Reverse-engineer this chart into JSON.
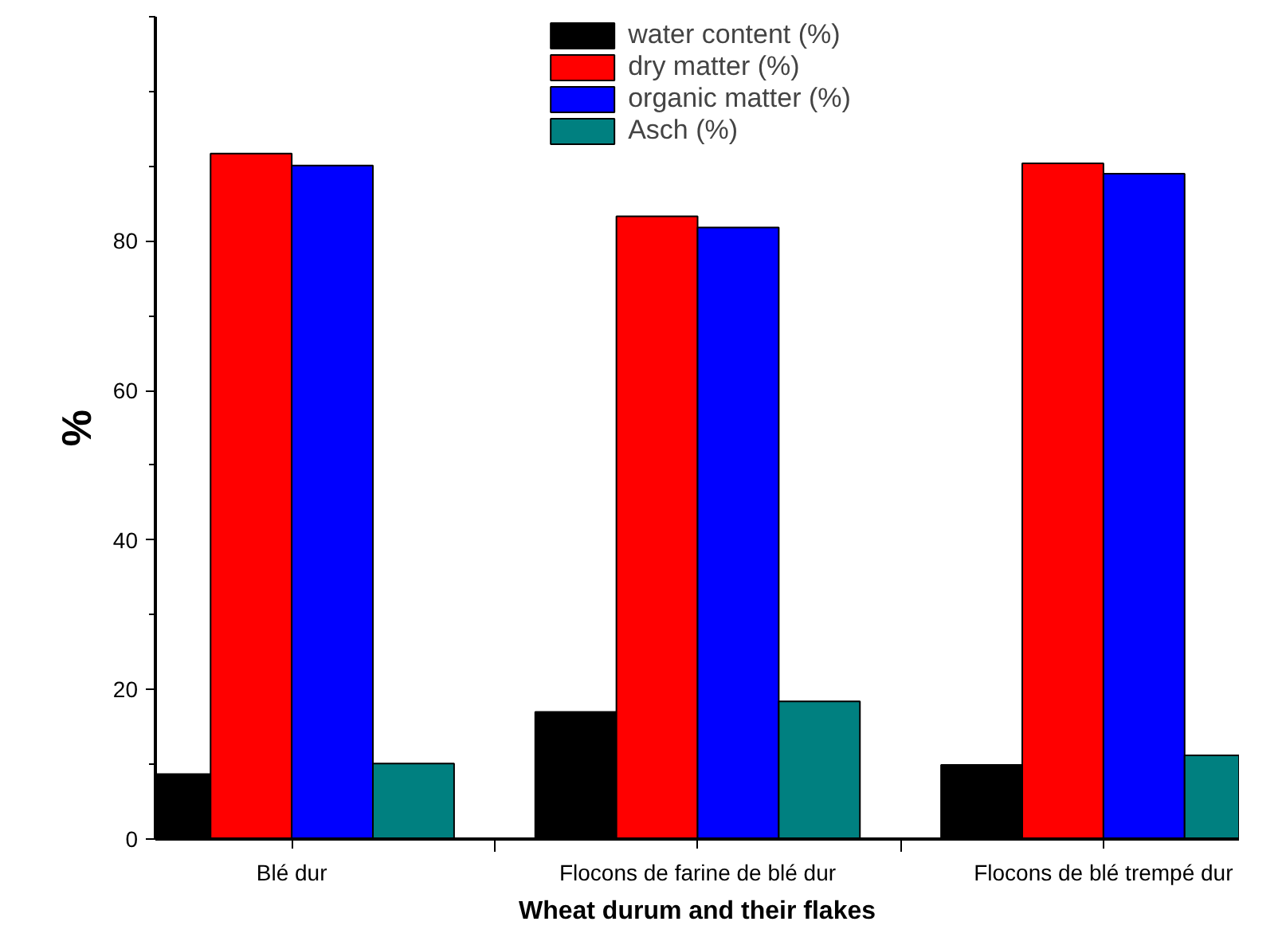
{
  "chart_data": {
    "type": "bar",
    "xlabel": "Wheat durum and their flakes",
    "ylabel": "%",
    "categories": [
      "Blé dur",
      "Flocons de farine de blé dur",
      "Flocons de blé trempé dur"
    ],
    "series": [
      {
        "name": "water content (%)",
        "color": "#000000",
        "values": [
          8.7,
          17.0,
          9.9
        ]
      },
      {
        "name": "dry matter (%)",
        "color": "#ff0000",
        "values": [
          91.7,
          83.3,
          90.4
        ]
      },
      {
        "name": "organic matter (%)",
        "color": "#0000ff",
        "values": [
          90.1,
          81.8,
          89.0
        ]
      },
      {
        "name": "Asch (%)",
        "color": "#008080",
        "values": [
          10.1,
          18.4,
          11.2
        ]
      }
    ],
    "ylim": [
      0,
      110
    ],
    "yticks": [
      0,
      20,
      40,
      60,
      80
    ],
    "grid": false,
    "legend": "top"
  }
}
